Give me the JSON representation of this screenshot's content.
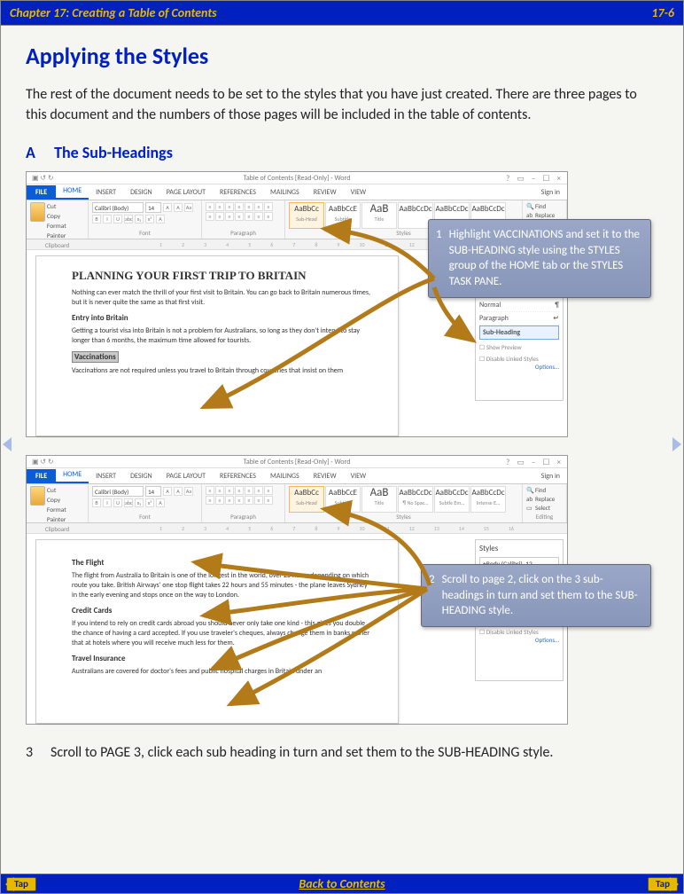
{
  "colors": {
    "blue": "#0020c0",
    "gold": "#e6b800",
    "callout": "#8a97ba",
    "arrow": "#b37a1a"
  },
  "header": {
    "left": "Chapter 17: Creating a Table of Contents",
    "right": "17-6"
  },
  "title": "Applying the Styles",
  "intro": "The rest of the document needs to be set to the styles that you have just created.  There are three pages to this document and the numbers of those pages will be included in the table of contents.",
  "section": {
    "letter": "A",
    "label": "The Sub-Headings"
  },
  "shot": {
    "win_title": "Table of Contents [Read-Only] - Word",
    "signin": "Sign in",
    "tabs": [
      "FILE",
      "HOME",
      "INSERT",
      "DESIGN",
      "PAGE LAYOUT",
      "REFERENCES",
      "MAILINGS",
      "REVIEW",
      "VIEW"
    ],
    "active_tab": "HOME",
    "clip": {
      "cut": "Cut",
      "copy": "Copy",
      "fp": "Format Painter",
      "label": "Clipboard"
    },
    "font": {
      "name": "Calibri (Body)",
      "size": "14",
      "label": "Font",
      "row2": [
        "B",
        "I",
        "U",
        "abc",
        "x₂",
        "x²",
        "A"
      ]
    },
    "para": {
      "label": "Paragraph"
    },
    "styles": {
      "label": "Styles",
      "boxes1": [
        {
          "p": "AaBbCc",
          "l": "Sub-Head",
          "sel": true
        },
        {
          "p": "AaBbCcE",
          "l": "Subtitle"
        },
        {
          "p": "AaB",
          "l": "Title",
          "big": true
        },
        {
          "p": "AaBbCcDc",
          "l": ""
        },
        {
          "p": "AaBbCcDc",
          "l": ""
        },
        {
          "p": "AaBbCcDc",
          "l": ""
        }
      ],
      "boxes2": [
        {
          "p": "AaBbCc",
          "l": "Sub-Head",
          "sel": true
        },
        {
          "p": "AaBbCcE",
          "l": "Subtitle"
        },
        {
          "p": "AaB",
          "l": "Title",
          "big": true
        },
        {
          "p": "AaBbCcDc",
          "l": "¶ No Spac…"
        },
        {
          "p": "AaBbCcDc",
          "l": "Subtle Em…"
        },
        {
          "p": "AaBbCcDc",
          "l": "Intense E…"
        }
      ]
    },
    "editing": {
      "find": "Find",
      "replace": "Replace",
      "select": "Select",
      "label": "Editing"
    }
  },
  "panel1": {
    "lines": [
      {
        "t": "Normal",
        "r": "¶"
      },
      {
        "t": "Paragraph",
        "r": "↵"
      },
      {
        "t": "Sub-Heading",
        "sel": true
      }
    ],
    "cb1": "Show Preview",
    "cb2": "Disable Linked Styles",
    "opt": "Options…"
  },
  "panel2": {
    "title": "Styles",
    "body": "+Body (Calibri), 12",
    "cb1": "Show Preview",
    "cb2": "Disable Linked Styles",
    "opt": "Options…"
  },
  "doc1": {
    "h2": "PLANNING YOUR FIRST TRIP TO BRITAIN",
    "p1": "Nothing can ever match the thrill of your first visit to Britain.  You can go back to Britain numerous times, but it is never quite the same as that first visit.",
    "s1": "Entry into Britain",
    "p2": "Getting a tourist visa into Britain is not a problem for Australians, so long as they don't intend to stay longer than 6 months, the maximum time allowed for tourists.",
    "s2": "Vaccinations",
    "p3": "Vaccinations are not required unless you travel to Britain through countries that insist on them"
  },
  "doc2": {
    "s1": "The Flight",
    "p1a": "The flight from Australia to Britain is one of the longest in the world, over 25 hours depending on which route you take.  British Airways' one stop flight takes 22 hours and 55 minutes - the plane leaves Sydney in the early evening and stops once on the way to London.",
    "s2": "Credit Cards",
    "p2": "If you intend to rely on credit cards abroad you should never only take one kind - this gives you double the chance of having a card accepted.  If you use traveler's cheques, always change them in banks rather that at hotels where you will receive much less for them.",
    "s3": "Travel Insurance",
    "p3": "Australians are covered for doctor's fees and public hospital charges in Britain under an"
  },
  "callout1": {
    "n": "1",
    "t": "Highlight VACCINATIONS and set it to the SUB-HEADING style using the STYLES group of the HOME tab or the STYLES TASK PANE."
  },
  "callout2": {
    "n": "2",
    "t": "Scroll to page 2, click on the 3 sub-headings in turn and set them to the SUB-HEADING style."
  },
  "step3": {
    "n": "3",
    "t": "Scroll to PAGE 3, click each sub heading in turn and set them to the SUB-HEADING style."
  },
  "footer": {
    "tap": "Tap",
    "center": "Back to Contents"
  }
}
